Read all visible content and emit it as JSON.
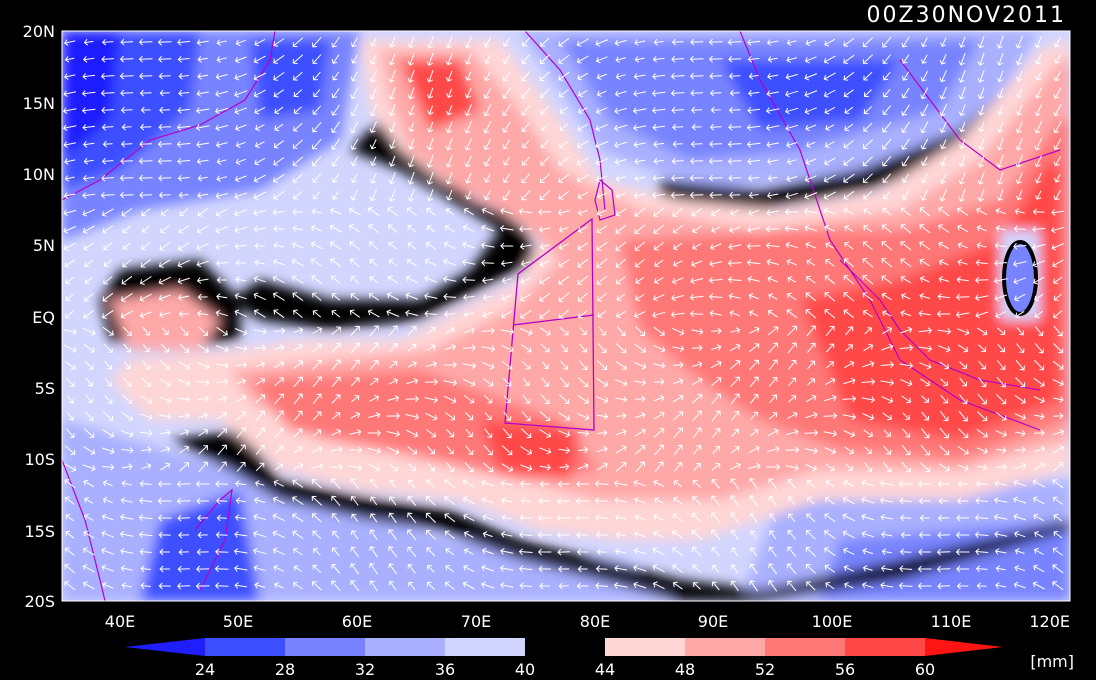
{
  "title": "00Z30NOV2011",
  "units": "[mm]",
  "y_axis_labels": [
    "20N",
    "15N",
    "10N",
    "5N",
    "EQ",
    "5S",
    "10S",
    "15S",
    "20S"
  ],
  "x_axis_labels": [
    "40E",
    "50E",
    "60E",
    "70E",
    "80E",
    "90E",
    "100E",
    "110E",
    "120E"
  ],
  "colorbar": {
    "ticks": [
      "24",
      "28",
      "32",
      "36",
      "40",
      "44",
      "48",
      "52",
      "56",
      "60"
    ],
    "colors": [
      "#1e1eff",
      "#3c50ff",
      "#7884ff",
      "#a9b0ff",
      "#d2d6ff",
      "#000000",
      "#ffd6d6",
      "#ffa8a8",
      "#ff7878",
      "#ff4848",
      "#ff1414"
    ]
  },
  "map": {
    "type": "filled-contour precipitable water with wind vectors",
    "background_color": "#000000",
    "coastline_color": "#b400c8",
    "vector_color": "#ffffff"
  }
}
